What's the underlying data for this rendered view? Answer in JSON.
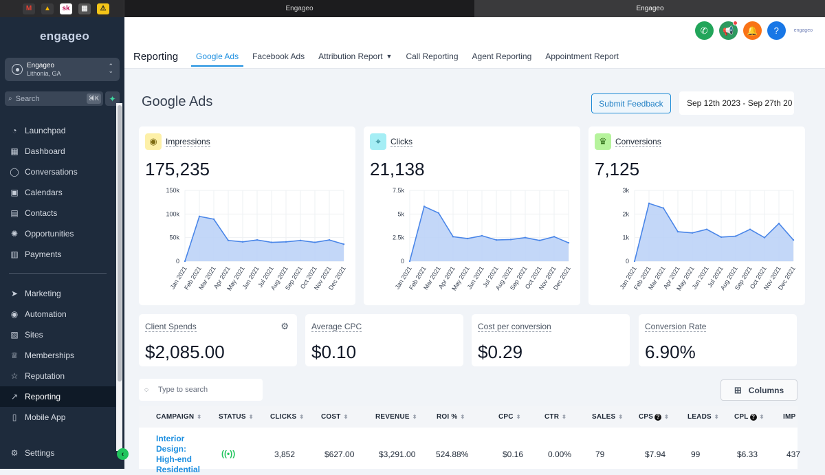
{
  "browser": {
    "tabs": [
      {
        "title": "Engageo",
        "active": false
      },
      {
        "title": "Engageo",
        "active": true
      }
    ],
    "pinned_icons": [
      "gmail-icon",
      "google-drive-icon",
      "sk-icon",
      "calendar-icon",
      "sketch-icon"
    ],
    "pinned_labels": [
      "M",
      "▲",
      "sk",
      "▦",
      "⚠"
    ]
  },
  "sidebar": {
    "logo": "engageo",
    "account": {
      "name": "Engageo",
      "location": "Lithonia, GA"
    },
    "search": {
      "placeholder": "Search",
      "shortcut": "⌘K"
    },
    "items": [
      {
        "label": "Launchpad",
        "icon": "rocket-icon",
        "glyph": "◔"
      },
      {
        "label": "Dashboard",
        "icon": "dashboard-icon",
        "glyph": "▦"
      },
      {
        "label": "Conversations",
        "icon": "chat-icon",
        "glyph": "◯"
      },
      {
        "label": "Calendars",
        "icon": "calendar-icon",
        "glyph": "▣"
      },
      {
        "label": "Contacts",
        "icon": "contacts-icon",
        "glyph": "▤"
      },
      {
        "label": "Opportunities",
        "icon": "opportunities-icon",
        "glyph": "✺"
      },
      {
        "label": "Payments",
        "icon": "payments-icon",
        "glyph": "▥"
      }
    ],
    "items2": [
      {
        "label": "Marketing",
        "icon": "send-icon",
        "glyph": "➤"
      },
      {
        "label": "Automation",
        "icon": "automation-icon",
        "glyph": "◉"
      },
      {
        "label": "Sites",
        "icon": "sites-icon",
        "glyph": "▧"
      },
      {
        "label": "Memberships",
        "icon": "memberships-icon",
        "glyph": "♕"
      },
      {
        "label": "Reputation",
        "icon": "star-icon",
        "glyph": "☆"
      },
      {
        "label": "Reporting",
        "icon": "trend-icon",
        "glyph": "↗"
      },
      {
        "label": "Mobile App",
        "icon": "mobile-icon",
        "glyph": "▯"
      }
    ],
    "settings": {
      "label": "Settings",
      "glyph": "⚙"
    }
  },
  "header": {
    "actions": [
      {
        "name": "phone",
        "glyph": "✆",
        "color": "#22a55a"
      },
      {
        "name": "megaphone",
        "glyph": "📢",
        "color": "#2e9a5f"
      },
      {
        "name": "bell",
        "glyph": "🔔",
        "color": "#f97316"
      },
      {
        "name": "help",
        "glyph": "?",
        "color": "#1877e6"
      }
    ],
    "mini_logo": "engageo",
    "section_title": "Reporting",
    "tabs": [
      {
        "label": "Google Ads",
        "active": true
      },
      {
        "label": "Facebook Ads"
      },
      {
        "label": "Attribution Report",
        "dropdown": true
      },
      {
        "label": "Call Reporting"
      },
      {
        "label": "Agent Reporting"
      },
      {
        "label": "Appointment Report"
      }
    ]
  },
  "main": {
    "title": "Google Ads",
    "feedback_label": "Submit Feedback",
    "date_range": "Sep 12th 2023 - Sep 27th 20"
  },
  "metric_cards": [
    {
      "label": "Impressions",
      "value": "175,235",
      "badge_glyph": "◉",
      "badge_bg": "#fdf0a8",
      "badge_color": "#7c6a10",
      "y_ticks": [
        "150k",
        "100k",
        "50k",
        "0"
      ],
      "y_max": 150000,
      "values": [
        0,
        95000,
        89000,
        44000,
        41000,
        45000,
        40000,
        41000,
        44000,
        40000,
        45000,
        36000
      ]
    },
    {
      "label": "Clicks",
      "value": "21,138",
      "badge_glyph": "⌖",
      "badge_bg": "#a5eef5",
      "badge_color": "#0e6a78",
      "y_ticks": [
        "7.5k",
        "5k",
        "2.5k",
        "0"
      ],
      "y_max": 7500,
      "values": [
        0,
        5800,
        5100,
        2600,
        2400,
        2700,
        2250,
        2300,
        2500,
        2200,
        2600,
        1950
      ]
    },
    {
      "label": "Conversions",
      "value": "7,125",
      "badge_glyph": "♛",
      "badge_bg": "#b6f39c",
      "badge_color": "#2e6b16",
      "y_ticks": [
        "3k",
        "2k",
        "1k",
        "0"
      ],
      "y_max": 3000,
      "values": [
        0,
        2450,
        2250,
        1250,
        1200,
        1350,
        1020,
        1060,
        1350,
        1000,
        1600,
        900
      ]
    }
  ],
  "months": [
    "Jan 2021",
    "Feb 2021",
    "Mar 2021",
    "Apr 2021",
    "May 2021",
    "Jun 2021",
    "Jul 2021",
    "Aug 2021",
    "Sep 2021",
    "Oct 2021",
    "Nov 2021",
    "Dec 2021"
  ],
  "kpis": [
    {
      "label": "Client Spends",
      "value": "$2,085.00",
      "gear": true
    },
    {
      "label": "Average CPC",
      "value": "$0.10"
    },
    {
      "label": "Cost per conversion",
      "value": "$0.29"
    },
    {
      "label": "Conversion Rate",
      "value": "6.90%"
    }
  ],
  "table": {
    "search_placeholder": "Type to search",
    "columns_label": "Columns",
    "headers": [
      {
        "label": "CAMPAIGN",
        "sort": true
      },
      {
        "label": "STATUS",
        "sort": true
      },
      {
        "label": "CLICKS",
        "sort": true
      },
      {
        "label": "COST",
        "sort": true
      },
      {
        "label": "REVENUE",
        "sort": true
      },
      {
        "label": "ROI %",
        "sort": true
      },
      {
        "label": "CPC",
        "sort": true
      },
      {
        "label": "CTR",
        "sort": true
      },
      {
        "label": "SALES",
        "sort": true
      },
      {
        "label": "CPS",
        "sort": true,
        "help": true
      },
      {
        "label": "LEADS",
        "sort": true
      },
      {
        "label": "CPL",
        "sort": true,
        "help": true
      },
      {
        "label": "IMP",
        "sort": false
      }
    ],
    "rows": [
      {
        "campaign": "Interior Design: High-end Residential",
        "cells": [
          "3,852",
          "$627.00",
          "$3,291.00",
          "524.88%",
          "$0.16",
          "0.00%",
          "79",
          "$7.94",
          "99",
          "$6.33",
          "437"
        ]
      }
    ]
  }
}
